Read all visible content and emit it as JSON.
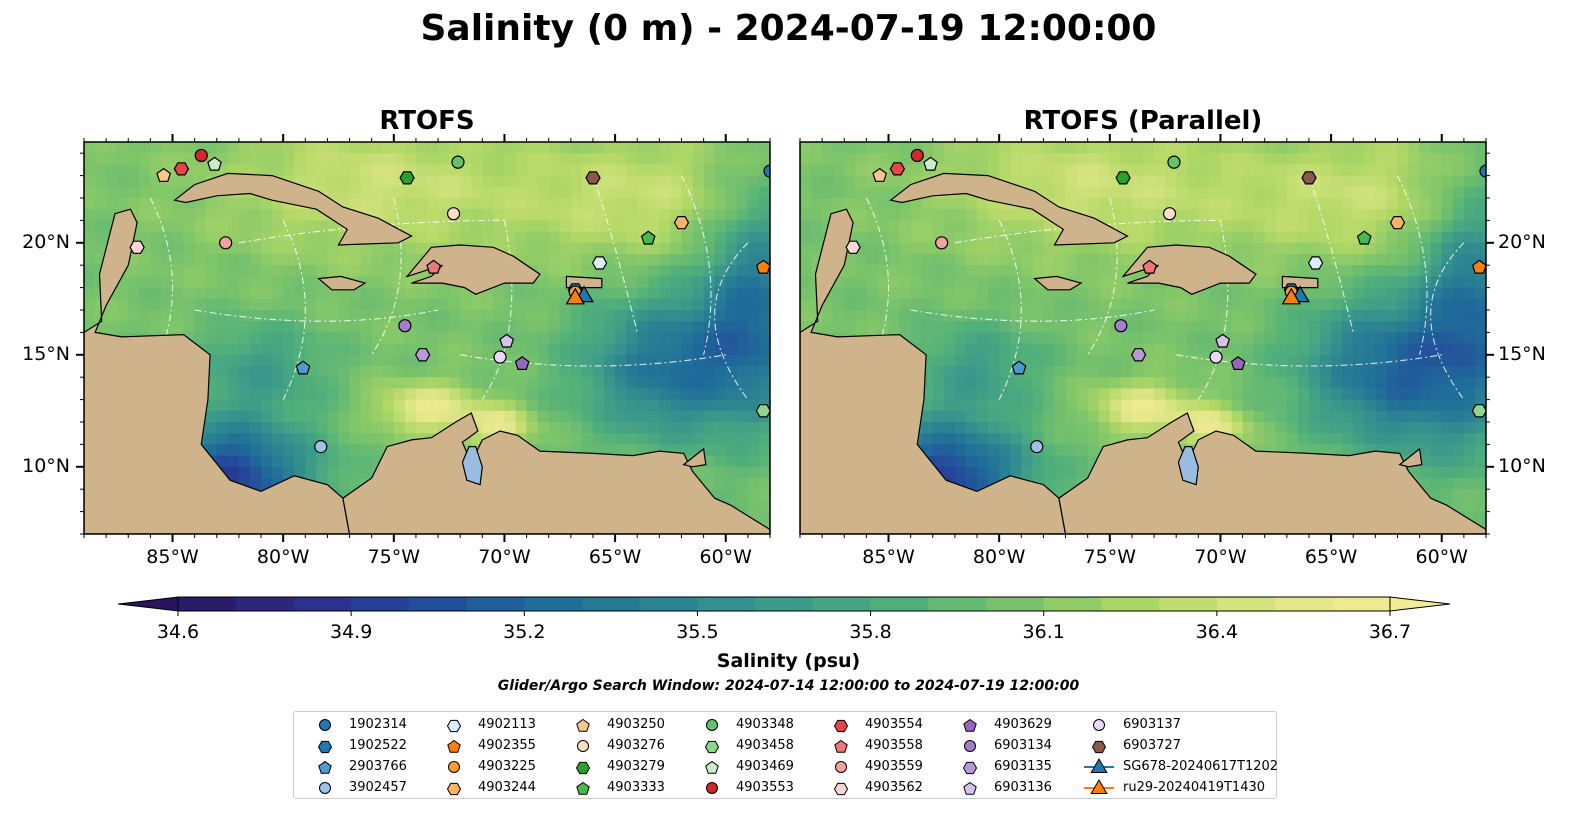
{
  "figure": {
    "title": "Salinity (0 m) - 2024-07-19 12:00:00",
    "window_text": "Glider/Argo Search Window: 2024-07-14 12:00:00 to 2024-07-19 12:00:00"
  },
  "colors": {
    "land": "#cfb38a",
    "lakes": "#99bde0",
    "contours": "#ffffff",
    "colormap": [
      "#28155e",
      "#2d2d8a",
      "#24499b",
      "#1f6b9a",
      "#2b8392",
      "#3c9a8a",
      "#52b07a",
      "#7cc46a",
      "#b2d866",
      "#dde585",
      "#f3ec96"
    ]
  },
  "chart_data": {
    "type": "heatmap",
    "variable": "Salinity",
    "depth": "0 m",
    "datetime": "2024-07-19 12:00:00",
    "panels": [
      {
        "title": "RTOFS"
      },
      {
        "title": "RTOFS (Parallel)"
      }
    ],
    "xlim": [
      -89,
      -58
    ],
    "ylim": [
      7,
      24.5
    ],
    "x_ticks": [
      -85,
      -80,
      -75,
      -70,
      -65,
      -60
    ],
    "x_tick_labels": [
      "85°W",
      "80°W",
      "75°W",
      "70°W",
      "65°W",
      "60°W"
    ],
    "y_ticks": [
      10,
      15,
      20
    ],
    "y_tick_labels": [
      "10°N",
      "15°N",
      "20°N"
    ],
    "colorbar": {
      "label": "Salinity (psu)",
      "min": 34.6,
      "max": 36.7,
      "extend": "both",
      "ticks": [
        34.6,
        34.9,
        35.2,
        35.5,
        35.8,
        36.1,
        36.4,
        36.7
      ],
      "tick_labels": [
        "34.6",
        "34.9",
        "35.2",
        "35.5",
        "35.8",
        "36.1",
        "36.4",
        "36.7"
      ]
    },
    "legend_placement": "bottom-center",
    "floats": [
      {
        "name": "1902314",
        "marker": "circle",
        "color": "#1f77b4",
        "lon": -58.0,
        "lat": 23.2
      },
      {
        "name": "1902522",
        "marker": "hexagon",
        "color": "#1f77b4",
        "lon": -66.8,
        "lat": 17.9
      },
      {
        "name": "2903766",
        "marker": "pentagon",
        "color": "#4a9bd1",
        "lon": -79.1,
        "lat": 14.4
      },
      {
        "name": "3902457",
        "marker": "circle",
        "color": "#9cc4e8",
        "lon": -78.3,
        "lat": 10.9
      },
      {
        "name": "4902113",
        "marker": "hexagon",
        "color": "#d9eef9",
        "lon": -65.7,
        "lat": 19.1
      },
      {
        "name": "4902355",
        "marker": "pentagon",
        "color": "#ff7f0e",
        "lon": -58.3,
        "lat": 18.9
      },
      {
        "name": "4903225",
        "marker": "circle",
        "color": "#ff9933",
        "lon": -66.8,
        "lat": 17.8
      },
      {
        "name": "4903244",
        "marker": "hexagon",
        "color": "#ffb366",
        "lon": -62.0,
        "lat": 20.9
      },
      {
        "name": "4903250",
        "marker": "pentagon",
        "color": "#ffc68c",
        "lon": -85.4,
        "lat": 23.0
      },
      {
        "name": "4903276",
        "marker": "circle",
        "color": "#ffe1c2",
        "lon": -72.3,
        "lat": 21.3
      },
      {
        "name": "4903279",
        "marker": "hexagon",
        "color": "#2ca02c",
        "lon": -74.4,
        "lat": 22.9
      },
      {
        "name": "4903333",
        "marker": "pentagon",
        "color": "#4cb84c",
        "lon": -63.5,
        "lat": 20.2
      },
      {
        "name": "4903348",
        "marker": "circle",
        "color": "#66c266",
        "lon": -72.1,
        "lat": 23.6
      },
      {
        "name": "4903458",
        "marker": "hexagon",
        "color": "#8fd68f",
        "lon": -58.3,
        "lat": 12.5
      },
      {
        "name": "4903469",
        "marker": "pentagon",
        "color": "#c8eec8",
        "lon": -83.1,
        "lat": 23.5
      },
      {
        "name": "4903553",
        "marker": "circle",
        "color": "#d62728",
        "lon": -83.7,
        "lat": 23.9
      },
      {
        "name": "4903554",
        "marker": "hexagon",
        "color": "#e34747",
        "lon": -84.6,
        "lat": 23.3
      },
      {
        "name": "4903558",
        "marker": "pentagon",
        "color": "#ee7777",
        "lon": -73.2,
        "lat": 18.9
      },
      {
        "name": "4903559",
        "marker": "circle",
        "color": "#f2a0a0",
        "lon": -82.6,
        "lat": 20.0
      },
      {
        "name": "4903562",
        "marker": "hexagon",
        "color": "#fcd6d6",
        "lon": -86.6,
        "lat": 19.8
      },
      {
        "name": "4903629",
        "marker": "pentagon",
        "color": "#9467bd",
        "lon": -69.2,
        "lat": 14.6
      },
      {
        "name": "6903134",
        "marker": "circle",
        "color": "#a57dc9",
        "lon": -74.5,
        "lat": 16.3
      },
      {
        "name": "6903135",
        "marker": "hexagon",
        "color": "#b89ad6",
        "lon": -73.7,
        "lat": 15.0
      },
      {
        "name": "6903136",
        "marker": "pentagon",
        "color": "#d6c2ea",
        "lon": -69.9,
        "lat": 15.6
      },
      {
        "name": "6903137",
        "marker": "circle",
        "color": "#e8daf5",
        "lon": -70.2,
        "lat": 14.9
      },
      {
        "name": "6903727",
        "marker": "hexagon",
        "color": "#8c564b",
        "lon": -66.0,
        "lat": 22.9
      }
    ],
    "gliders": [
      {
        "name": "SG678-20240617T1202",
        "marker": "triangle",
        "color": "#1f77b4",
        "lon": -66.4,
        "lat": 17.6
      },
      {
        "name": "ru29-20240419T1430",
        "marker": "triangle",
        "color": "#ff7f0e",
        "lon": -66.8,
        "lat": 17.5
      }
    ]
  }
}
